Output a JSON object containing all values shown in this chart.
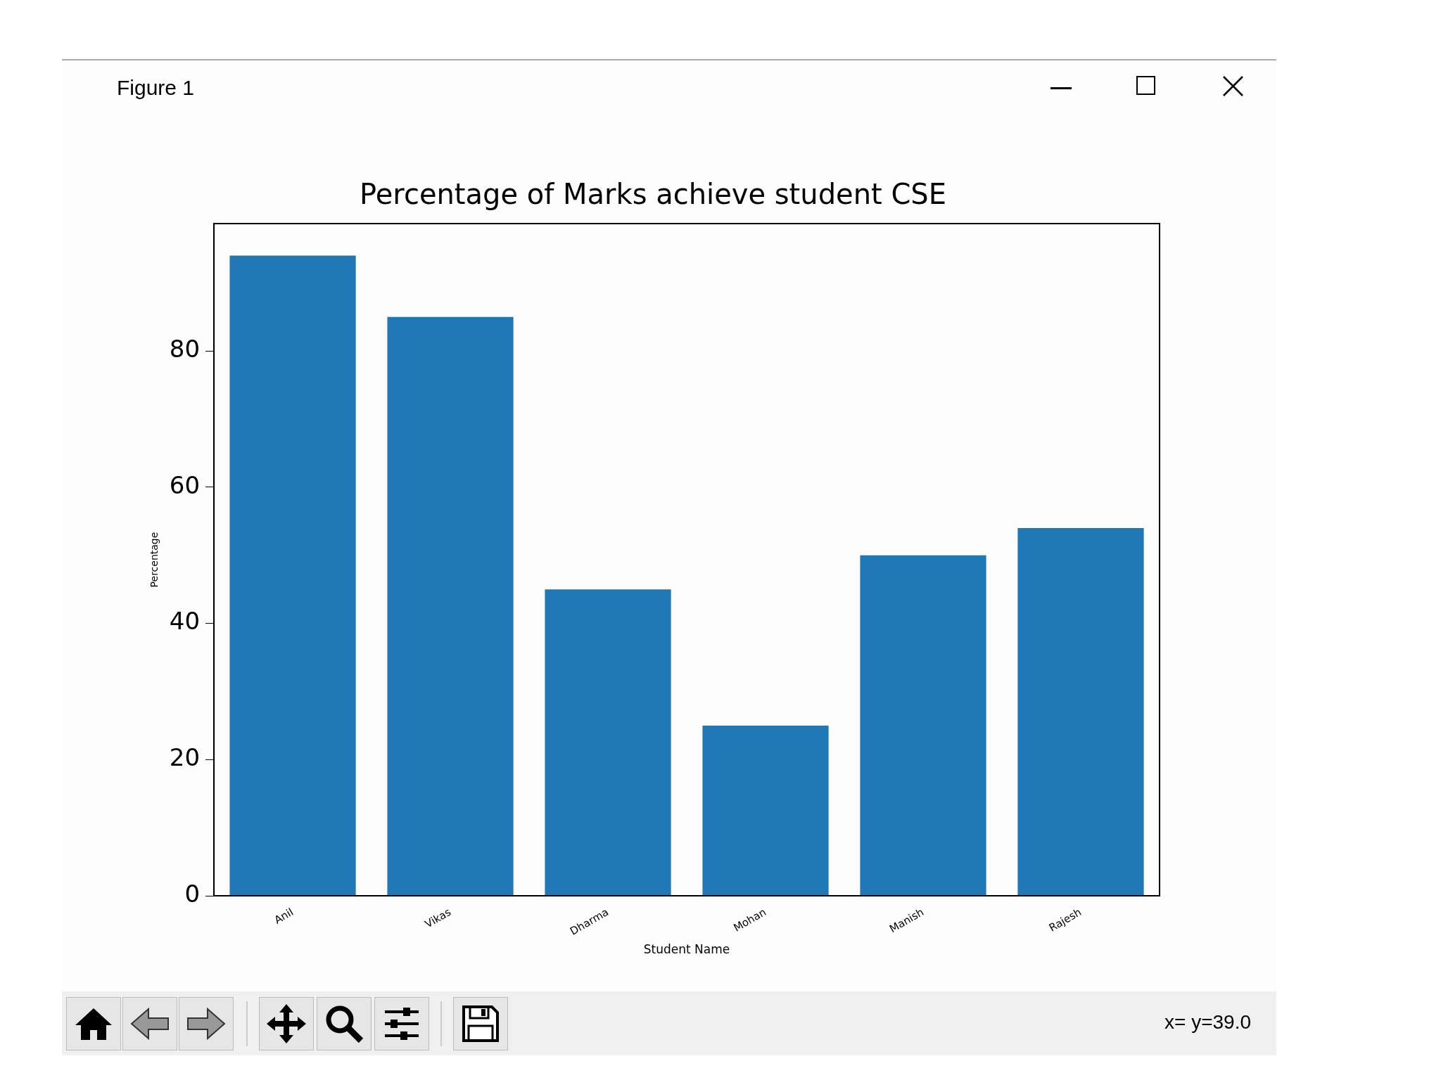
{
  "chart_data": {
    "type": "bar",
    "title": "Percentage of Marks achieve student CSE",
    "xlabel": "Student Name",
    "ylabel": "Percentage",
    "categories": [
      "Anil",
      "Vikas",
      "Dharma",
      "Mohan",
      "Manish",
      "Rajesh"
    ],
    "values": [
      94,
      85,
      45,
      25,
      50,
      54
    ],
    "color": "#1f77b4",
    "ylim": [
      0,
      98.7
    ],
    "yticks": [
      0,
      20,
      40,
      60,
      80
    ],
    "grid": false,
    "legend": false,
    "annotations": [
      "Figure 1",
      "x= y=39.0"
    ]
  }
}
